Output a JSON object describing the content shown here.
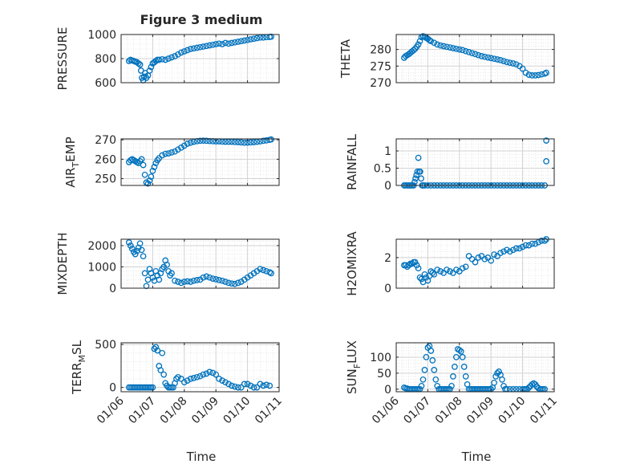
{
  "figure": {
    "title": "Figure 3 medium",
    "xlabel": "Time"
  },
  "marker_color": "#0072BD",
  "chart_data": [
    {
      "type": "scatter",
      "ylabel": "PRESSURE",
      "xlim": [
        0,
        5
      ],
      "ylim": [
        600,
        1000
      ],
      "yticks": [
        600,
        800,
        1000
      ],
      "yticklabels": [
        "600",
        "800",
        "1000"
      ],
      "xticks": [
        0,
        1,
        2,
        3,
        4,
        5
      ],
      "xticklabels": [],
      "grid": true,
      "minor_grid": true,
      "x": [
        0.25,
        0.3,
        0.35,
        0.4,
        0.45,
        0.5,
        0.55,
        0.6,
        0.63,
        0.66,
        0.7,
        0.73,
        0.76,
        0.8,
        0.85,
        0.9,
        0.95,
        1.0,
        1.05,
        1.1,
        1.15,
        1.2,
        1.3,
        1.4,
        1.5,
        1.6,
        1.7,
        1.8,
        1.9,
        2.0,
        2.1,
        2.2,
        2.3,
        2.4,
        2.5,
        2.6,
        2.7,
        2.8,
        2.9,
        3.0,
        3.1,
        3.2,
        3.3,
        3.4,
        3.5,
        3.6,
        3.7,
        3.8,
        3.9,
        4.0,
        4.1,
        4.2,
        4.3,
        4.4,
        4.5,
        4.6,
        4.7,
        4.75
      ],
      "y": [
        780,
        790,
        785,
        780,
        775,
        770,
        760,
        750,
        700,
        640,
        620,
        650,
        680,
        640,
        660,
        700,
        730,
        760,
        770,
        780,
        790,
        790,
        795,
        790,
        800,
        810,
        820,
        835,
        850,
        860,
        870,
        880,
        885,
        890,
        895,
        900,
        905,
        910,
        915,
        920,
        925,
        920,
        930,
        925,
        930,
        935,
        940,
        945,
        950,
        955,
        960,
        965,
        970,
        975,
        975,
        978,
        980,
        982
      ]
    },
    {
      "type": "scatter",
      "ylabel": "THETA",
      "xlim": [
        0,
        5
      ],
      "ylim": [
        270,
        284.5
      ],
      "yticks": [
        270,
        275,
        280
      ],
      "yticklabels": [
        "270",
        "275",
        "280"
      ],
      "xticks": [
        0,
        1,
        2,
        3,
        4,
        5
      ],
      "xticklabels": [],
      "grid": true,
      "minor_grid": true,
      "x": [
        0.25,
        0.3,
        0.35,
        0.4,
        0.45,
        0.5,
        0.55,
        0.6,
        0.65,
        0.7,
        0.75,
        0.8,
        0.85,
        0.9,
        0.95,
        1.0,
        1.05,
        1.1,
        1.2,
        1.3,
        1.4,
        1.5,
        1.6,
        1.7,
        1.8,
        1.9,
        2.0,
        2.1,
        2.2,
        2.3,
        2.4,
        2.5,
        2.6,
        2.7,
        2.8,
        2.9,
        3.0,
        3.1,
        3.2,
        3.3,
        3.4,
        3.5,
        3.6,
        3.7,
        3.8,
        3.9,
        4.0,
        4.1,
        4.2,
        4.3,
        4.4,
        4.5,
        4.6,
        4.7,
        4.75
      ],
      "y": [
        277.5,
        278,
        278.3,
        278.6,
        279,
        279.4,
        279.8,
        280.2,
        280.8,
        281.5,
        282.5,
        283.7,
        284,
        283.8,
        283.5,
        283.2,
        282.8,
        282.5,
        282,
        281.5,
        281.2,
        281,
        280.8,
        280.6,
        280.4,
        280.2,
        280,
        279.8,
        279.5,
        279.2,
        278.9,
        278.6,
        278.3,
        278,
        277.8,
        277.6,
        277.4,
        277.2,
        277,
        276.8,
        276.5,
        276.2,
        276,
        275.8,
        275.5,
        275,
        274.2,
        273,
        272.4,
        272.2,
        272.2,
        272.3,
        272.5,
        272.7,
        273
      ]
    },
    {
      "type": "scatter",
      "ylabel": "AIR_TEMP",
      "xlim": [
        0,
        5
      ],
      "ylim": [
        246.5,
        270.5
      ],
      "yticks": [
        250,
        260,
        270
      ],
      "yticklabels": [
        "250",
        "260",
        "270"
      ],
      "xticks": [
        0,
        1,
        2,
        3,
        4,
        5
      ],
      "xticklabels": [],
      "grid": true,
      "minor_grid": true,
      "x": [
        0.25,
        0.3,
        0.35,
        0.4,
        0.45,
        0.5,
        0.55,
        0.6,
        0.65,
        0.7,
        0.75,
        0.8,
        0.85,
        0.9,
        0.95,
        1.0,
        1.05,
        1.1,
        1.15,
        1.2,
        1.3,
        1.4,
        1.5,
        1.6,
        1.7,
        1.8,
        1.9,
        2.0,
        2.1,
        2.2,
        2.3,
        2.4,
        2.5,
        2.6,
        2.7,
        2.8,
        2.9,
        3.0,
        3.1,
        3.2,
        3.3,
        3.4,
        3.5,
        3.6,
        3.7,
        3.8,
        3.9,
        4.0,
        4.1,
        4.2,
        4.3,
        4.4,
        4.5,
        4.6,
        4.7,
        4.75
      ],
      "y": [
        258.5,
        259.5,
        260,
        259.5,
        259,
        258.5,
        258,
        259,
        260,
        257,
        252,
        248,
        247.5,
        249,
        251,
        254,
        256,
        258,
        259.5,
        260.5,
        262,
        262.8,
        263,
        263.5,
        264,
        265,
        266,
        267,
        268,
        268.5,
        269,
        269.3,
        269.5,
        269.6,
        269.5,
        269.4,
        269.3,
        269.2,
        269.2,
        269.1,
        269,
        269,
        269,
        268.9,
        268.8,
        268.7,
        268.5,
        268.6,
        268.7,
        268.8,
        269,
        269.2,
        269.5,
        269.7,
        270,
        270.2
      ]
    },
    {
      "type": "scatter",
      "ylabel": "RAINFALL",
      "xlim": [
        0,
        5
      ],
      "ylim": [
        0,
        1.35
      ],
      "yticks": [
        0,
        0.5,
        1
      ],
      "yticklabels": [
        "0",
        "0.5",
        "1"
      ],
      "xticks": [
        0,
        1,
        2,
        3,
        4,
        5
      ],
      "xticklabels": [],
      "grid": true,
      "minor_grid": true,
      "x": [
        0.25,
        0.3,
        0.35,
        0.4,
        0.45,
        0.5,
        0.55,
        0.58,
        0.61,
        0.64,
        0.67,
        0.7,
        0.73,
        0.76,
        0.79,
        0.82,
        0.85,
        0.9,
        1.0,
        1.1,
        1.2,
        1.3,
        1.4,
        1.5,
        1.6,
        1.7,
        1.8,
        1.9,
        2.0,
        2.1,
        2.2,
        2.3,
        2.4,
        2.5,
        2.6,
        2.7,
        2.8,
        2.9,
        3.0,
        3.1,
        3.2,
        3.3,
        3.4,
        3.5,
        3.6,
        3.7,
        3.8,
        3.9,
        4.0,
        4.1,
        4.2,
        4.3,
        4.4,
        4.5,
        4.6,
        4.7,
        4.75,
        4.75
      ],
      "y": [
        0,
        0,
        0,
        0,
        0,
        0,
        0,
        0.1,
        0.2,
        0.3,
        0.4,
        0.8,
        0.4,
        0.4,
        0.2,
        0,
        0,
        0,
        0,
        0,
        0,
        0,
        0,
        0,
        0,
        0,
        0,
        0,
        0,
        0,
        0,
        0,
        0,
        0,
        0,
        0,
        0,
        0,
        0,
        0,
        0,
        0,
        0,
        0,
        0,
        0,
        0,
        0,
        0,
        0,
        0,
        0,
        0,
        0,
        0,
        0,
        1.3,
        0.7
      ]
    },
    {
      "type": "scatter",
      "ylabel": "MIXDEPTH",
      "xlim": [
        0,
        5
      ],
      "ylim": [
        0,
        2300
      ],
      "yticks": [
        0,
        1000,
        2000
      ],
      "yticklabels": [
        "0",
        "1000",
        "2000"
      ],
      "xticks": [
        0,
        1,
        2,
        3,
        4,
        5
      ],
      "xticklabels": [],
      "grid": true,
      "minor_grid": true,
      "x": [
        0.25,
        0.3,
        0.35,
        0.4,
        0.45,
        0.5,
        0.55,
        0.6,
        0.65,
        0.7,
        0.75,
        0.8,
        0.85,
        0.9,
        0.95,
        1.0,
        1.05,
        1.1,
        1.15,
        1.2,
        1.25,
        1.3,
        1.35,
        1.4,
        1.45,
        1.5,
        1.55,
        1.6,
        1.7,
        1.8,
        1.9,
        2.0,
        2.1,
        2.2,
        2.3,
        2.4,
        2.5,
        2.6,
        2.7,
        2.8,
        2.9,
        3.0,
        3.1,
        3.2,
        3.3,
        3.4,
        3.5,
        3.6,
        3.7,
        3.8,
        3.9,
        4.0,
        4.1,
        4.2,
        4.3,
        4.4,
        4.5,
        4.6,
        4.7,
        4.75
      ],
      "y": [
        2150,
        2000,
        1850,
        1700,
        1600,
        1750,
        1900,
        2100,
        1800,
        1500,
        700,
        100,
        400,
        900,
        700,
        500,
        350,
        800,
        600,
        400,
        700,
        900,
        1000,
        1300,
        1100,
        800,
        600,
        700,
        350,
        300,
        250,
        300,
        320,
        300,
        350,
        380,
        400,
        500,
        550,
        500,
        450,
        420,
        380,
        350,
        300,
        250,
        220,
        200,
        250,
        300,
        400,
        500,
        600,
        700,
        800,
        900,
        850,
        800,
        750,
        700
      ]
    },
    {
      "type": "scatter",
      "ylabel": "H2OMIXRA",
      "xlim": [
        0,
        5
      ],
      "ylim": [
        0,
        3.2
      ],
      "yticks": [
        0,
        2
      ],
      "yticklabels": [
        "0",
        "2"
      ],
      "xticks": [
        0,
        1,
        2,
        3,
        4,
        5
      ],
      "xticklabels": [],
      "grid": true,
      "minor_grid": true,
      "x": [
        0.25,
        0.3,
        0.35,
        0.4,
        0.45,
        0.5,
        0.55,
        0.6,
        0.65,
        0.7,
        0.75,
        0.8,
        0.85,
        0.9,
        0.95,
        1.0,
        1.05,
        1.1,
        1.15,
        1.2,
        1.3,
        1.4,
        1.5,
        1.6,
        1.7,
        1.8,
        1.9,
        2.0,
        2.1,
        2.2,
        2.3,
        2.4,
        2.5,
        2.6,
        2.7,
        2.8,
        2.9,
        3.0,
        3.1,
        3.2,
        3.3,
        3.4,
        3.5,
        3.6,
        3.7,
        3.8,
        3.9,
        4.0,
        4.1,
        4.2,
        4.3,
        4.4,
        4.5,
        4.6,
        4.7,
        4.75
      ],
      "y": [
        1.5,
        1.5,
        1.4,
        1.5,
        1.6,
        1.6,
        1.7,
        1.7,
        1.5,
        1.3,
        0.7,
        0.6,
        0.4,
        0.9,
        0.7,
        0.5,
        0.8,
        1.1,
        1.0,
        0.9,
        1.2,
        1.1,
        1.0,
        1.2,
        1.1,
        1.0,
        1.2,
        1.1,
        1.3,
        1.4,
        2.1,
        1.9,
        1.7,
        2.0,
        2.1,
        1.9,
        2.0,
        1.8,
        2.2,
        2.1,
        2.3,
        2.4,
        2.5,
        2.4,
        2.5,
        2.6,
        2.6,
        2.7,
        2.8,
        2.8,
        2.9,
        2.9,
        3.0,
        3.1,
        3.1,
        3.2
      ]
    },
    {
      "type": "scatter",
      "ylabel": "TERR_MSL",
      "xlim": [
        0,
        5
      ],
      "ylim": [
        -50,
        520
      ],
      "yticks": [
        0,
        500
      ],
      "yticklabels": [
        "0",
        "500"
      ],
      "xticks": [
        0,
        1,
        2,
        3,
        4,
        5
      ],
      "xticklabels": [
        "01/06",
        "01/07",
        "01/08",
        "01/09",
        "01/10",
        "01/11"
      ],
      "grid": true,
      "minor_grid": true,
      "x": [
        0.25,
        0.3,
        0.35,
        0.4,
        0.45,
        0.5,
        0.55,
        0.6,
        0.65,
        0.7,
        0.75,
        0.8,
        0.85,
        0.9,
        0.95,
        1.0,
        1.05,
        1.1,
        1.15,
        1.2,
        1.25,
        1.3,
        1.35,
        1.4,
        1.45,
        1.5,
        1.55,
        1.6,
        1.65,
        1.7,
        1.75,
        1.8,
        1.9,
        2.0,
        2.1,
        2.2,
        2.3,
        2.4,
        2.5,
        2.6,
        2.7,
        2.8,
        2.9,
        3.0,
        3.1,
        3.2,
        3.3,
        3.4,
        3.5,
        3.6,
        3.7,
        3.8,
        3.9,
        4.0,
        4.1,
        4.2,
        4.3,
        4.4,
        4.5,
        4.6,
        4.7
      ],
      "y": [
        0,
        0,
        0,
        0,
        0,
        0,
        0,
        0,
        0,
        0,
        0,
        0,
        0,
        0,
        0,
        0,
        450,
        470,
        430,
        250,
        200,
        400,
        150,
        50,
        20,
        0,
        0,
        0,
        0,
        50,
        100,
        120,
        100,
        60,
        80,
        100,
        110,
        120,
        130,
        150,
        160,
        180,
        170,
        150,
        100,
        80,
        60,
        40,
        20,
        10,
        0,
        0,
        40,
        40,
        20,
        0,
        0,
        40,
        20,
        30,
        20
      ]
    },
    {
      "type": "scatter",
      "ylabel": "SUN_FLUX",
      "xlim": [
        0,
        5
      ],
      "ylim": [
        -8,
        145
      ],
      "yticks": [
        0,
        50,
        100
      ],
      "yticklabels": [
        "0",
        "50",
        "100"
      ],
      "xticks": [
        0,
        1,
        2,
        3,
        4,
        5
      ],
      "xticklabels": [
        "01/06",
        "01/07",
        "01/08",
        "01/09",
        "01/10",
        "01/11"
      ],
      "grid": true,
      "minor_grid": true,
      "x": [
        0.25,
        0.3,
        0.35,
        0.4,
        0.45,
        0.5,
        0.55,
        0.6,
        0.65,
        0.7,
        0.75,
        0.8,
        0.85,
        0.9,
        0.95,
        1.0,
        1.05,
        1.1,
        1.15,
        1.2,
        1.25,
        1.3,
        1.35,
        1.4,
        1.45,
        1.5,
        1.55,
        1.6,
        1.65,
        1.7,
        1.75,
        1.8,
        1.85,
        1.9,
        1.95,
        2.0,
        2.05,
        2.1,
        2.15,
        2.2,
        2.25,
        2.3,
        2.35,
        2.4,
        2.45,
        2.5,
        2.55,
        2.6,
        2.65,
        2.7,
        2.75,
        2.8,
        2.85,
        2.9,
        2.95,
        3.0,
        3.05,
        3.1,
        3.15,
        3.2,
        3.25,
        3.3,
        3.35,
        3.4,
        3.45,
        3.5,
        3.6,
        3.7,
        3.8,
        3.9,
        4.0,
        4.05,
        4.1,
        4.15,
        4.2,
        4.25,
        4.3,
        4.35,
        4.4,
        4.45,
        4.5,
        4.55,
        4.6,
        4.65,
        4.7
      ],
      "y": [
        5,
        3,
        2,
        0,
        0,
        0,
        0,
        0,
        0,
        0,
        0,
        10,
        30,
        60,
        100,
        130,
        135,
        120,
        90,
        60,
        30,
        10,
        0,
        0,
        0,
        0,
        0,
        0,
        0,
        0,
        10,
        40,
        70,
        100,
        125,
        122,
        118,
        100,
        70,
        40,
        15,
        0,
        0,
        0,
        0,
        0,
        0,
        0,
        0,
        0,
        0,
        0,
        0,
        0,
        0,
        0,
        5,
        20,
        40,
        50,
        55,
        45,
        30,
        10,
        0,
        0,
        0,
        0,
        0,
        0,
        0,
        0,
        0,
        0,
        5,
        10,
        15,
        18,
        15,
        8,
        3,
        0,
        0,
        0,
        0
      ]
    }
  ]
}
